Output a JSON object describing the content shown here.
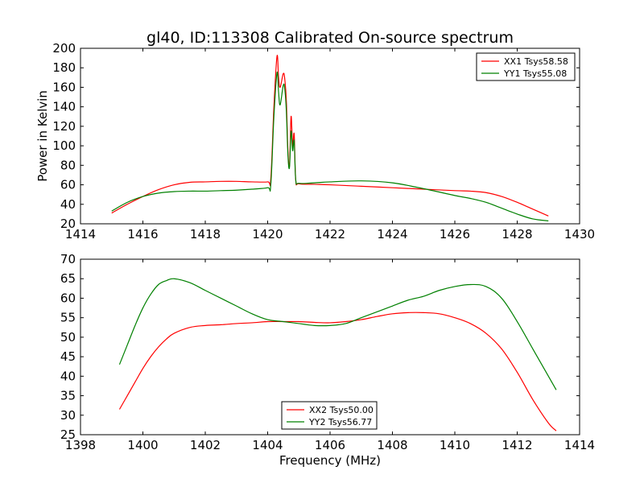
{
  "figure": {
    "title": "gl40, ID:113308 Calibrated On-source spectrum",
    "ylabel": "Power in Kelvin",
    "xlabel": "Frequency (MHz)"
  },
  "chart_data": [
    {
      "type": "line",
      "title": "gl40, ID:113308 Calibrated On-source spectrum",
      "ylabel": "Power in Kelvin",
      "xlabel": "",
      "xlim": [
        1414,
        1430
      ],
      "ylim": [
        20,
        200
      ],
      "xticks": [
        1414,
        1416,
        1418,
        1420,
        1422,
        1424,
        1426,
        1428,
        1430
      ],
      "yticks": [
        20,
        40,
        60,
        80,
        100,
        120,
        140,
        160,
        180,
        200
      ],
      "legend": {
        "position": "top-right"
      },
      "series": [
        {
          "name": "XX1 Tsys58.58",
          "color": "#ff0000",
          "x": [
            1415.0,
            1415.5,
            1416.0,
            1416.5,
            1417.0,
            1417.5,
            1418.0,
            1418.5,
            1419.0,
            1419.5,
            1420.0,
            1420.1,
            1420.2,
            1420.3,
            1420.35,
            1420.4,
            1420.5,
            1420.55,
            1420.6,
            1420.65,
            1420.7,
            1420.75,
            1420.8,
            1420.85,
            1420.9,
            1421.0,
            1421.5,
            1422.0,
            1423.0,
            1424.0,
            1425.0,
            1426.0,
            1426.5,
            1427.0,
            1427.5,
            1428.0,
            1428.5,
            1429.0
          ],
          "y": [
            31,
            40,
            48,
            55,
            60,
            62.5,
            63,
            63.5,
            63.5,
            63,
            63,
            66,
            140,
            192,
            170,
            160,
            174,
            168,
            145,
            95,
            80,
            130,
            100,
            112,
            65,
            61,
            60.5,
            60,
            58.5,
            57,
            55.5,
            54,
            53.5,
            52,
            48,
            42,
            35,
            28
          ]
        },
        {
          "name": "YY1 Tsys55.08",
          "color": "#008000",
          "x": [
            1415.0,
            1415.5,
            1416.0,
            1416.5,
            1417.0,
            1417.5,
            1418.0,
            1418.5,
            1419.0,
            1419.5,
            1420.0,
            1420.1,
            1420.2,
            1420.3,
            1420.35,
            1420.4,
            1420.5,
            1420.55,
            1420.6,
            1420.65,
            1420.7,
            1420.75,
            1420.8,
            1420.85,
            1420.9,
            1421.0,
            1421.5,
            1422.0,
            1423.0,
            1424.0,
            1425.0,
            1426.0,
            1426.5,
            1427.0,
            1427.5,
            1428.0,
            1428.5,
            1429.0
          ],
          "y": [
            33,
            42,
            48,
            51.5,
            53,
            53.5,
            53.5,
            54,
            54.5,
            55.5,
            57,
            60,
            130,
            175,
            155,
            142,
            162,
            158,
            135,
            90,
            78,
            115,
            95,
            105,
            65,
            61.5,
            62,
            63,
            64,
            62,
            56,
            49,
            46,
            42,
            36,
            30,
            25,
            23
          ]
        }
      ]
    },
    {
      "type": "line",
      "title": "",
      "ylabel": "",
      "xlabel": "Frequency (MHz)",
      "xlim": [
        1398,
        1414
      ],
      "ylim": [
        25,
        70
      ],
      "xticks": [
        1398,
        1400,
        1402,
        1404,
        1406,
        1408,
        1410,
        1412,
        1414
      ],
      "yticks": [
        25,
        30,
        35,
        40,
        45,
        50,
        55,
        60,
        65,
        70
      ],
      "legend": {
        "position": "bottom-center"
      },
      "series": [
        {
          "name": "XX2 Tsys50.00",
          "color": "#ff0000",
          "x": [
            1399.25,
            1399.5,
            1399.75,
            1400.0,
            1400.25,
            1400.5,
            1400.75,
            1401.0,
            1401.5,
            1402.0,
            1402.5,
            1403.0,
            1403.5,
            1404.0,
            1404.5,
            1405.0,
            1405.5,
            1406.0,
            1406.5,
            1407.0,
            1407.5,
            1408.0,
            1408.5,
            1409.0,
            1409.5,
            1410.0,
            1410.5,
            1411.0,
            1411.5,
            1412.0,
            1412.5,
            1413.0,
            1413.25
          ],
          "y": [
            31.5,
            35,
            38.5,
            42,
            45,
            47.5,
            49.5,
            51,
            52.5,
            53,
            53.2,
            53.5,
            53.7,
            54,
            54,
            54,
            53.8,
            53.7,
            54,
            54.5,
            55.3,
            56,
            56.3,
            56.3,
            56,
            55,
            53.5,
            51,
            47,
            41,
            34,
            28,
            26
          ]
        },
        {
          "name": "YY2 Tsys56.77",
          "color": "#008000",
          "x": [
            1399.25,
            1399.5,
            1399.75,
            1400.0,
            1400.25,
            1400.5,
            1400.75,
            1401.0,
            1401.5,
            1402.0,
            1402.5,
            1403.0,
            1403.5,
            1404.0,
            1404.5,
            1405.0,
            1405.5,
            1406.0,
            1406.5,
            1407.0,
            1407.5,
            1408.0,
            1408.5,
            1409.0,
            1409.5,
            1410.0,
            1410.5,
            1411.0,
            1411.5,
            1412.0,
            1412.5,
            1413.0,
            1413.25
          ],
          "y": [
            43,
            48,
            53,
            57.5,
            61,
            63.5,
            64.5,
            65,
            64,
            62,
            60,
            58,
            56,
            54.5,
            54,
            53.5,
            53,
            53,
            53.5,
            55,
            56.5,
            58,
            59.5,
            60.5,
            62,
            63,
            63.5,
            63,
            60,
            54,
            47,
            40,
            36.5
          ]
        }
      ]
    }
  ]
}
